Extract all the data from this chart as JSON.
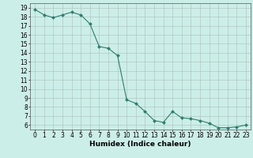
{
  "x": [
    0,
    1,
    2,
    3,
    4,
    5,
    6,
    7,
    8,
    9,
    10,
    11,
    12,
    13,
    14,
    15,
    16,
    17,
    18,
    19,
    20,
    21,
    22,
    23
  ],
  "y": [
    18.8,
    18.2,
    17.9,
    18.2,
    18.5,
    18.2,
    17.2,
    14.7,
    14.5,
    13.7,
    8.8,
    8.4,
    7.5,
    6.5,
    6.3,
    7.5,
    6.8,
    6.7,
    6.5,
    6.2,
    5.7,
    5.7,
    5.8,
    6.0
  ],
  "line_color": "#2e7d6e",
  "marker": "D",
  "marker_size": 2,
  "bg_color": "#cceee8",
  "grid_color": "#b0c8c4",
  "xlabel": "Humidex (Indice chaleur)",
  "xlim": [
    -0.5,
    23.5
  ],
  "ylim": [
    5.5,
    19.5
  ],
  "yticks": [
    6,
    7,
    8,
    9,
    10,
    11,
    12,
    13,
    14,
    15,
    16,
    17,
    18,
    19
  ],
  "xticks": [
    0,
    1,
    2,
    3,
    4,
    5,
    6,
    7,
    8,
    9,
    10,
    11,
    12,
    13,
    14,
    15,
    16,
    17,
    18,
    19,
    20,
    21,
    22,
    23
  ],
  "tick_fontsize": 5.5,
  "xlabel_fontsize": 6.5,
  "grid_minor_color": "#d8ecec",
  "spine_color": "#555555"
}
